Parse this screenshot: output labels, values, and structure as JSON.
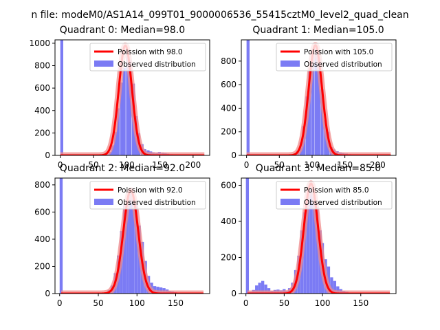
{
  "suptitle": "n file: modeM0/AS1A14_099T01_9000006536_55415cztM0_level2_quad_clean",
  "colors": {
    "hist": "#7b7bf4",
    "poisson": "#ff0000",
    "poisson_halo": "#f08a8a"
  },
  "chart_data": [
    {
      "type": "bar",
      "title": "Quadrant 0: Median=98.0",
      "legend_position": "upper right",
      "xlim": [
        -8,
        225
      ],
      "ylim": [
        0,
        1030
      ],
      "xticks": [
        0,
        50,
        100,
        150,
        200
      ],
      "yticks": [
        0,
        200,
        400,
        600,
        800,
        1000
      ],
      "series": [
        {
          "name": "Poission with 98.0",
          "type": "line",
          "mean": 98.0,
          "peak": 980
        },
        {
          "name": "Observed distribution",
          "type": "histogram",
          "bin_width": 4.4,
          "x": [
            0,
            68,
            73,
            77,
            81,
            85,
            90,
            94,
            99,
            103,
            108,
            112,
            116,
            121,
            125,
            130,
            134,
            138,
            143,
            147,
            152,
            156,
            160,
            165,
            169,
            174
          ],
          "y": [
            1030,
            12,
            30,
            90,
            210,
            420,
            650,
            780,
            900,
            850,
            640,
            350,
            200,
            100,
            55,
            45,
            35,
            28,
            22,
            30,
            25,
            20,
            15,
            10,
            6,
            3
          ]
        }
      ]
    },
    {
      "type": "bar",
      "title": "Quadrant 1: Median=105.0",
      "legend_position": "upper right",
      "xlim": [
        -8,
        228
      ],
      "ylim": [
        0,
        980
      ],
      "xticks": [
        0,
        50,
        100,
        150,
        200
      ],
      "yticks": [
        0,
        200,
        400,
        600,
        800
      ],
      "series": [
        {
          "name": "Poission with 105.0",
          "type": "line",
          "mean": 105.0,
          "peak": 935
        },
        {
          "name": "Observed distribution",
          "type": "histogram",
          "bin_width": 4.6,
          "x": [
            0,
            71,
            76,
            81,
            85,
            90,
            94,
            99,
            104,
            108,
            113,
            118,
            122,
            127,
            131,
            136,
            141,
            145,
            150,
            155,
            159,
            164
          ],
          "y": [
            980,
            15,
            40,
            110,
            250,
            500,
            720,
            860,
            930,
            820,
            560,
            300,
            200,
            70,
            50,
            35,
            25,
            20,
            15,
            10,
            5,
            3
          ]
        }
      ]
    },
    {
      "type": "bar",
      "title": "Quadrant 2: Median=92.0",
      "legend_position": "upper right",
      "xlim": [
        -6,
        194
      ],
      "ylim": [
        0,
        850
      ],
      "xticks": [
        0,
        50,
        100,
        150
      ],
      "yticks": [
        0,
        200,
        400,
        600,
        800
      ],
      "series": [
        {
          "name": "Poission with 92.0",
          "type": "line",
          "mean": 92.0,
          "peak": 760
        },
        {
          "name": "Observed distribution",
          "type": "histogram",
          "bin_width": 3.9,
          "x": [
            0,
            58,
            62,
            66,
            70,
            74,
            78,
            82,
            86,
            90,
            93,
            97,
            101,
            105,
            109,
            113,
            117,
            121,
            125,
            129,
            133,
            137,
            140,
            144,
            148,
            152
          ],
          "y": [
            850,
            8,
            25,
            60,
            150,
            280,
            460,
            650,
            700,
            740,
            700,
            660,
            500,
            380,
            240,
            130,
            80,
            55,
            50,
            45,
            40,
            30,
            20,
            15,
            10,
            5
          ]
        }
      ]
    },
    {
      "type": "bar",
      "title": "Quadrant 3: Median=85.0",
      "legend_position": "upper right",
      "xlim": [
        -6,
        196
      ],
      "ylim": [
        0,
        640
      ],
      "xticks": [
        0,
        50,
        100,
        150
      ],
      "yticks": [
        0,
        200,
        400,
        600
      ],
      "series": [
        {
          "name": "Poission with 85.0",
          "type": "line",
          "mean": 85.0,
          "peak": 610
        },
        {
          "name": "Observed distribution",
          "type": "histogram",
          "bin_width": 3.9,
          "x": [
            0,
            4,
            8,
            12,
            16,
            20,
            24,
            28,
            32,
            36,
            40,
            44,
            48,
            51,
            55,
            59,
            63,
            67,
            71,
            75,
            79,
            83,
            87,
            91,
            95,
            98,
            102,
            106,
            110,
            114,
            118,
            122,
            126,
            130,
            134
          ],
          "y": [
            640,
            10,
            20,
            45,
            60,
            70,
            50,
            30,
            15,
            20,
            22,
            18,
            25,
            15,
            30,
            60,
            130,
            210,
            350,
            450,
            550,
            590,
            540,
            480,
            350,
            280,
            190,
            150,
            90,
            70,
            40,
            25,
            15,
            10,
            5
          ]
        }
      ]
    }
  ]
}
